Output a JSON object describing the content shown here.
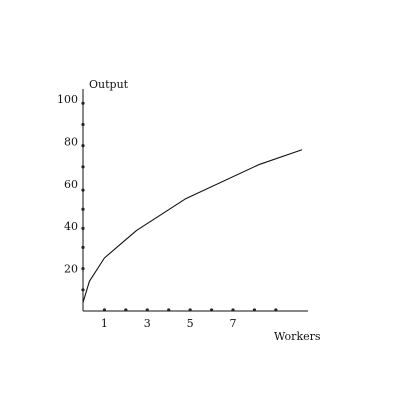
{
  "chart_data": {
    "type": "line",
    "title": "",
    "xlabel": "Workers",
    "ylabel": "Output",
    "xlim": [
      0,
      10.5
    ],
    "ylim": [
      0,
      100
    ],
    "x_ticks": [
      1,
      3,
      5,
      7
    ],
    "y_ticks": [
      20,
      40,
      60,
      80,
      100
    ],
    "grid": false,
    "legend": "none",
    "series": [
      {
        "x": [
          0,
          0.3,
          1,
          2.5,
          4.8,
          8.2,
          10.2
        ],
        "y": [
          4,
          14,
          25,
          38,
          53,
          69,
          76
        ]
      }
    ],
    "y_axis_dots": [
      10,
      20,
      30,
      39,
      48,
      57,
      68,
      78,
      88,
      98
    ],
    "x_axis_dots": [
      1,
      2,
      3,
      4,
      5,
      6,
      7,
      8,
      9
    ]
  },
  "colors": {
    "line": "#111111",
    "axis": "#111111",
    "dots": "#222222"
  }
}
